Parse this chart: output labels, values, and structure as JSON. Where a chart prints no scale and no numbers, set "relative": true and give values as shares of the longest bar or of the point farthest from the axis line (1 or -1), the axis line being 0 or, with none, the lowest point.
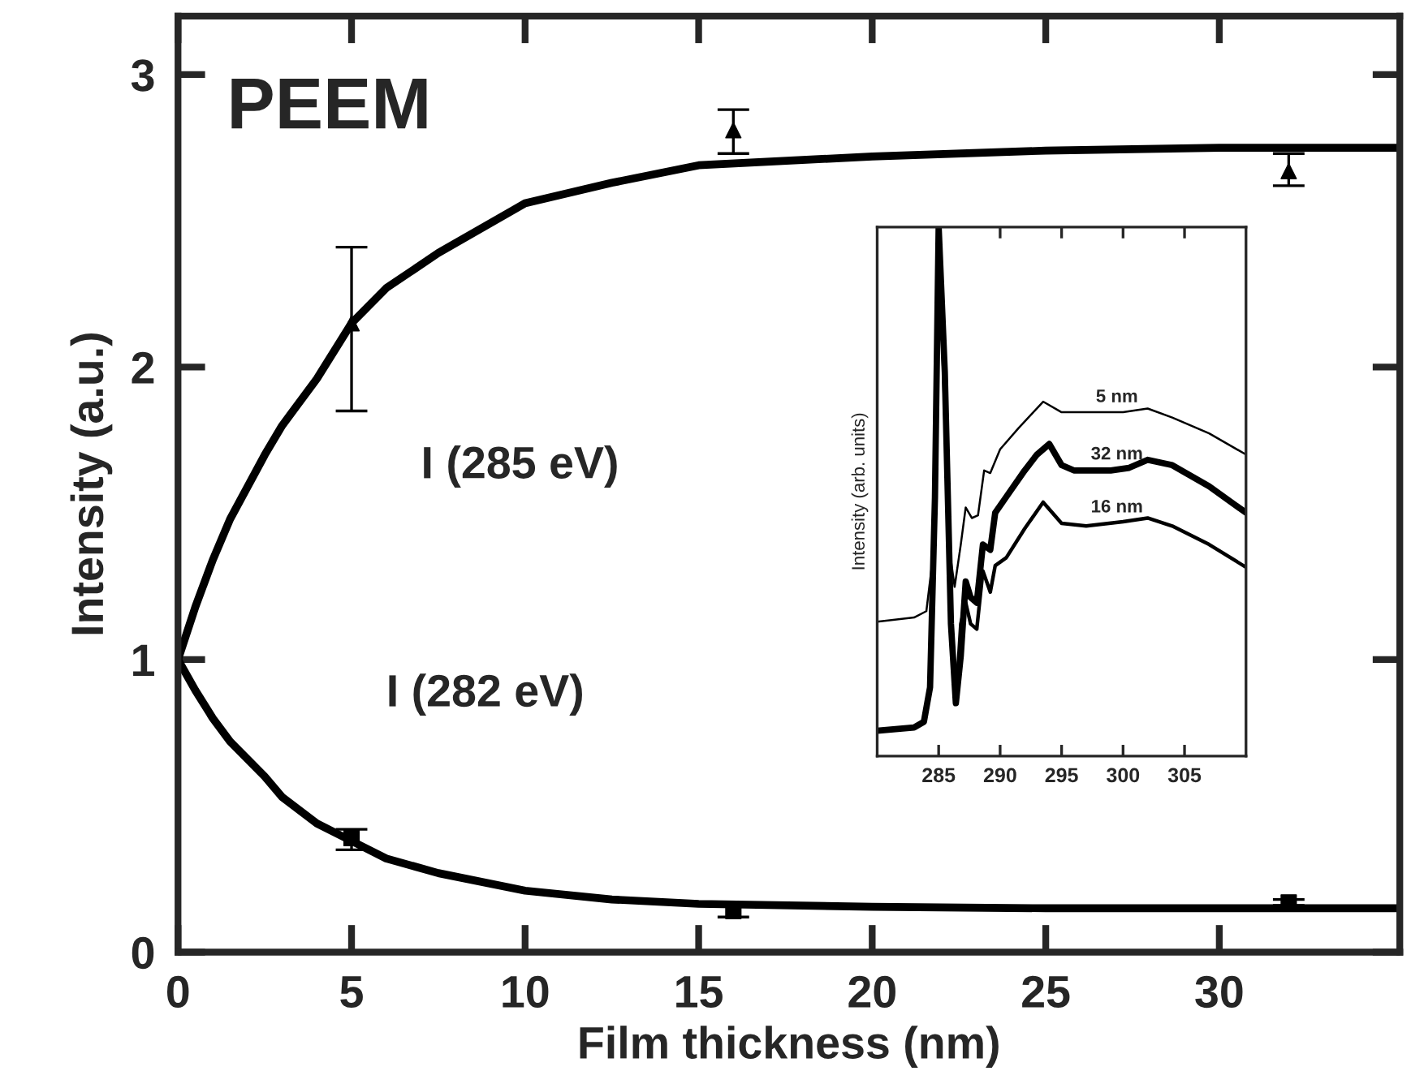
{
  "chart_data": [
    {
      "type": "line",
      "xlabel": "Film thickness (nm)",
      "ylabel": "Intensity (a.u.)",
      "annotations": [
        "PEEM"
      ],
      "xlim": [
        0,
        35.2
      ],
      "ylim": [
        0,
        3.2
      ],
      "xticks": [
        0,
        5,
        10,
        15,
        20,
        25,
        30
      ],
      "yticks": [
        0,
        1,
        2,
        3
      ],
      "grid": false,
      "legend": false,
      "series": [
        {
          "name": "I (285 eV)",
          "type": "line",
          "color": "#000000",
          "x": [
            0,
            0.5,
            1,
            1.5,
            2.5,
            3,
            4,
            5,
            6,
            7.5,
            10,
            12.5,
            15,
            20,
            25,
            30,
            35.2
          ],
          "values": [
            1,
            1.18,
            1.34,
            1.48,
            1.7,
            1.8,
            1.96,
            2.15,
            2.27,
            2.39,
            2.56,
            2.63,
            2.69,
            2.72,
            2.74,
            2.75,
            2.75
          ]
        },
        {
          "type": "scatter",
          "marker": "triangle",
          "color": "#000000",
          "x": [
            5,
            16,
            32
          ],
          "values": [
            2.15,
            2.81,
            2.67
          ],
          "errors": [
            [
              1.85,
              2.41
            ],
            [
              2.73,
              2.88
            ],
            [
              2.62,
              2.73
            ]
          ]
        },
        {
          "name": "I (282 eV)",
          "type": "line",
          "color": "#000000",
          "x": [
            0,
            0.5,
            1,
            1.5,
            2.5,
            3,
            4,
            5,
            6,
            7.5,
            10,
            12.5,
            15,
            20,
            25,
            30,
            35.2
          ],
          "values": [
            1,
            0.895,
            0.8,
            0.72,
            0.6,
            0.53,
            0.44,
            0.38,
            0.32,
            0.27,
            0.21,
            0.18,
            0.165,
            0.155,
            0.15,
            0.15,
            0.15
          ]
        },
        {
          "type": "scatter",
          "marker": "square",
          "color": "#000000",
          "x": [
            5,
            16,
            32
          ],
          "values": [
            0.39,
            0.14,
            0.17
          ],
          "errors": [
            [
              0.35,
              0.42
            ],
            [
              0.12,
              0.16
            ],
            [
              0.16,
              0.18
            ]
          ]
        }
      ]
    },
    {
      "type": "line",
      "ylabel": "Intensity (arb. units)",
      "relative": true,
      "xlim": [
        280,
        310
      ],
      "xticks": [
        285,
        290,
        295,
        300,
        305
      ],
      "tick_labels": "x",
      "grid": false,
      "legend": false,
      "series": [
        {
          "name": "5 nm",
          "color": "#000000",
          "x": [
            280,
            283,
            284,
            284.5,
            284.8,
            285,
            285.5,
            286,
            286.3,
            286.8,
            287.2,
            287.7,
            288.2,
            288.7,
            289.2,
            290,
            291.5,
            293.5,
            295,
            298,
            300,
            302,
            304,
            307,
            310
          ],
          "values": [
            0.254,
            0.262,
            0.274,
            0.37,
            0.61,
            0.99,
            0.61,
            0.37,
            0.32,
            0.4,
            0.47,
            0.45,
            0.455,
            0.54,
            0.535,
            0.58,
            0.62,
            0.67,
            0.65,
            0.65,
            0.65,
            0.657,
            0.64,
            0.61,
            0.57
          ]
        },
        {
          "name": "32 nm",
          "color": "#000000",
          "x": [
            280,
            283,
            283.8,
            284.3,
            284.7,
            285,
            285.5,
            286,
            286.4,
            286.8,
            287.2,
            287.6,
            288.1,
            288.6,
            289.2,
            289.6,
            290.5,
            292,
            293,
            294,
            295,
            296,
            299,
            300.5,
            302,
            304,
            307,
            310
          ],
          "values": [
            0.048,
            0.054,
            0.065,
            0.13,
            0.49,
            1.0,
            0.726,
            0.25,
            0.1,
            0.19,
            0.33,
            0.3,
            0.29,
            0.4,
            0.39,
            0.46,
            0.49,
            0.54,
            0.57,
            0.59,
            0.55,
            0.54,
            0.54,
            0.545,
            0.56,
            0.55,
            0.51,
            0.46
          ]
        },
        {
          "name": "16 nm",
          "color": "#000000",
          "x": [
            280,
            283,
            283.8,
            284.3,
            284.7,
            285,
            285.5,
            286,
            286.4,
            286.8,
            287.2,
            287.6,
            288.1,
            288.6,
            289.2,
            289.6,
            290.5,
            292,
            293.5,
            295,
            297,
            300,
            302,
            304,
            307,
            310
          ],
          "values": [
            0.048,
            0.054,
            0.065,
            0.13,
            0.49,
            1.0,
            0.726,
            0.25,
            0.1,
            0.25,
            0.29,
            0.25,
            0.24,
            0.35,
            0.31,
            0.36,
            0.375,
            0.43,
            0.48,
            0.44,
            0.435,
            0.443,
            0.45,
            0.435,
            0.4,
            0.357
          ]
        }
      ]
    }
  ]
}
